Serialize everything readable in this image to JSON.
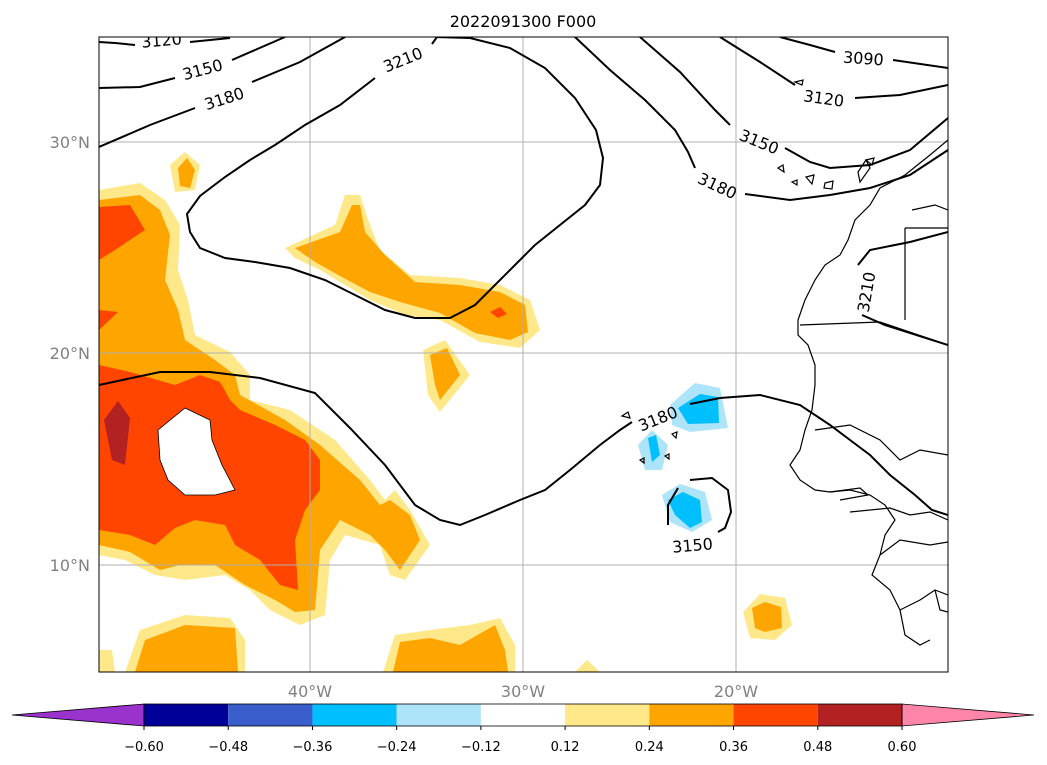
{
  "title": "2022091300 F000",
  "map": {
    "lat_labels": [
      "30°N",
      "20°N",
      "10°N"
    ],
    "lon_labels": [
      "40°W",
      "30°W",
      "20°W"
    ],
    "extent": {
      "lon": [
        -50,
        -10
      ],
      "lat": [
        5,
        35
      ]
    },
    "gridlines": true
  },
  "contours": {
    "field": "geopotential height",
    "labels": [
      "3120",
      "3150",
      "3180",
      "3210",
      "3090",
      "3120",
      "3150",
      "3180",
      "3210",
      "3180",
      "3150"
    ]
  },
  "colorbar": {
    "tick_labels": [
      "−0.60",
      "−0.48",
      "−0.36",
      "−0.24",
      "−0.12",
      "0.12",
      "0.24",
      "0.36",
      "0.48",
      "0.60"
    ],
    "bins": [
      {
        "range": "< -0.60",
        "color": "#9933cc"
      },
      {
        "range": "-0.60 to -0.48",
        "color": "#000099"
      },
      {
        "range": "-0.48 to -0.36",
        "color": "#3a5fcd"
      },
      {
        "range": "-0.36 to -0.24",
        "color": "#00bfff"
      },
      {
        "range": "-0.24 to -0.12",
        "color": "#ade4fa"
      },
      {
        "range": "-0.12 to 0.12",
        "color": "#ffffff"
      },
      {
        "range": "0.12 to 0.24",
        "color": "#ffe88a"
      },
      {
        "range": "0.24 to 0.36",
        "color": "#ffa500"
      },
      {
        "range": "0.36 to 0.48",
        "color": "#ff4500"
      },
      {
        "range": "0.48 to 0.60",
        "color": "#b22222"
      },
      {
        "range": "> 0.60",
        "color": "#ff86a8"
      }
    ]
  }
}
